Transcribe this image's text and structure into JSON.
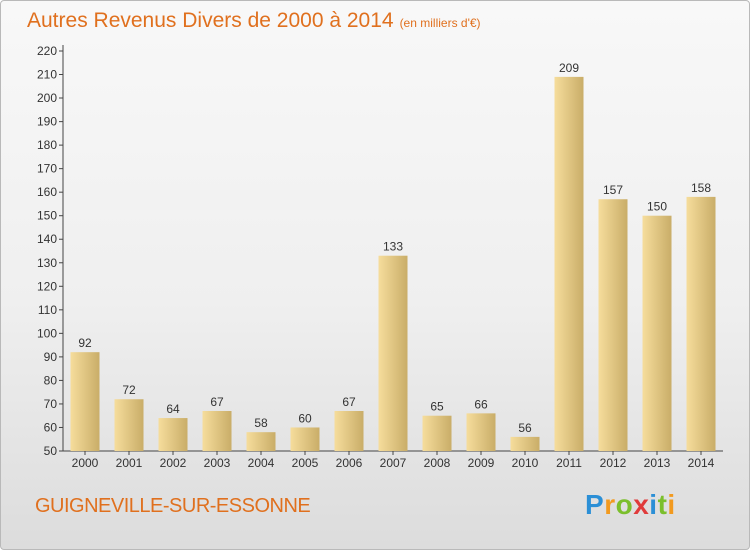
{
  "title": "Autres Revenus Divers de 2000 à 2014",
  "unit_note": "(en milliers d'€)",
  "location": "GUIGNEVILLE-SUR-ESSONNE",
  "logo": "Proxiti",
  "colors": {
    "title": "#e0701e",
    "bar_light": "#f6dd9c",
    "bar_dark": "#c9ad68",
    "axis": "#444444",
    "grid": "#d0d0d0"
  },
  "chart_data": {
    "type": "bar",
    "title": "Autres Revenus Divers de 2000 à 2014",
    "subtitle": "(en milliers d'€)",
    "xlabel": "",
    "ylabel": "",
    "ylim": [
      50,
      220
    ],
    "ytick_step": 10,
    "grid": false,
    "categories": [
      "2000",
      "2001",
      "2002",
      "2003",
      "2004",
      "2005",
      "2006",
      "2007",
      "2008",
      "2009",
      "2010",
      "2011",
      "2012",
      "2013",
      "2014"
    ],
    "values": [
      92,
      72,
      64,
      67,
      58,
      60,
      67,
      133,
      65,
      66,
      56,
      209,
      157,
      150,
      158
    ]
  }
}
